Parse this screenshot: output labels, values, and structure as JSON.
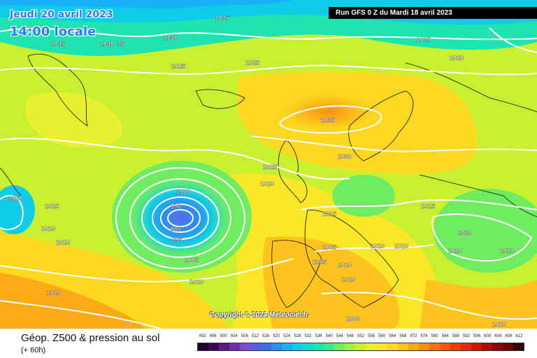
{
  "header": {
    "date_line": "Jeudi 20 avril 2023",
    "time_line": "14:00 locale",
    "run_info": "Run GFS 0 Z du Mardi 18 avril 2023"
  },
  "copyright": "Copyright © 2023 Meteociel.fr",
  "footer": {
    "product": "Géop. Z500 & pression au sol",
    "lead_time": "(+ 60h)"
  },
  "legend": {
    "values": [
      "492",
      "496",
      "500",
      "504",
      "508",
      "512",
      "516",
      "520",
      "524",
      "528",
      "532",
      "536",
      "540",
      "544",
      "548",
      "552",
      "556",
      "560",
      "564",
      "568",
      "572",
      "576",
      "580",
      "584",
      "588",
      "592",
      "596",
      "600",
      "604",
      "608",
      "612"
    ],
    "colors": [
      "#1a0030",
      "#3a0a5a",
      "#5a1a80",
      "#6a2ea6",
      "#7a4ccc",
      "#5a5ae6",
      "#3a70f0",
      "#2a90f5",
      "#1ab0f5",
      "#10cce8",
      "#10dcd0",
      "#20e4b0",
      "#40e890",
      "#70ec60",
      "#a0f040",
      "#c8f030",
      "#e8f030",
      "#f8e828",
      "#fcd820",
      "#fcc41c",
      "#fcaa18",
      "#fc9014",
      "#fc7410",
      "#fc580c",
      "#f43c0a",
      "#e42808",
      "#c81806",
      "#a80c04",
      "#880804",
      "#680402",
      "#300000"
    ]
  },
  "map": {
    "pressure_labels": [
      "1035",
      "1030",
      "1040",
      "35",
      "1045",
      "1025",
      "1015",
      "1020",
      "1025",
      "1035",
      "1030",
      "1025",
      "1020",
      "1015",
      "1010",
      "1000",
      "990",
      "995",
      "985",
      "1005",
      "1010",
      "1010",
      "1005",
      "1010",
      "1015",
      "1010",
      "1010",
      "1010",
      "1010",
      "1010",
      "1010",
      "1010",
      "1020",
      "1000",
      "1010",
      "1005",
      "1015"
    ]
  }
}
